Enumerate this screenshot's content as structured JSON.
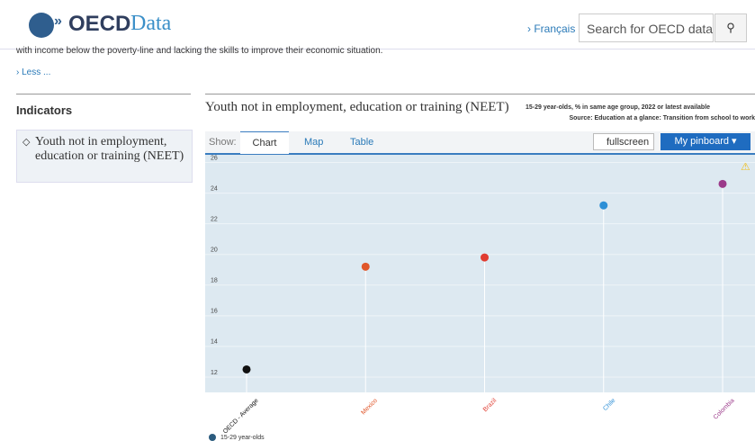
{
  "header": {
    "logo": "OECD",
    "logo_suffix": "Data",
    "language": "› Français",
    "search_placeholder": "Search for OECD data"
  },
  "intro": {
    "text": "with income below the poverty-line and lacking the skills to improve their economic situation.",
    "less": "› Less ..."
  },
  "sidebar": {
    "heading": "Indicators",
    "item": "Youth not in employment, education or training (NEET)"
  },
  "panel": {
    "title": "Youth not in employment, education or training (NEET)",
    "subtitle": "15-29 year-olds, % in same age group, 2022 or latest available",
    "source": "Source: Education at a glance: Transition from school to work",
    "show": "Show:",
    "tabs": [
      "Chart",
      "Map",
      "Table"
    ],
    "fullscreen": "fullscreen",
    "pinboard": "My pinboard"
  },
  "chart_data": {
    "type": "lollipop",
    "categories": [
      "OECD - Average",
      "Mexico",
      "Brazil",
      "Chile",
      "Colombia"
    ],
    "series": [
      {
        "name": "15-29 year-olds",
        "color": "#2b5b7e",
        "values": [
          12.5,
          19.2,
          19.8,
          23.2,
          24.6
        ]
      }
    ],
    "point_colors": [
      "#111111",
      "#e0562a",
      "#e03c31",
      "#2d8fd6",
      "#9b3a8a"
    ],
    "ylim": [
      11,
      26.5
    ],
    "yticks": [
      12,
      14,
      16,
      18,
      20,
      22,
      24,
      26
    ],
    "grid": true
  }
}
